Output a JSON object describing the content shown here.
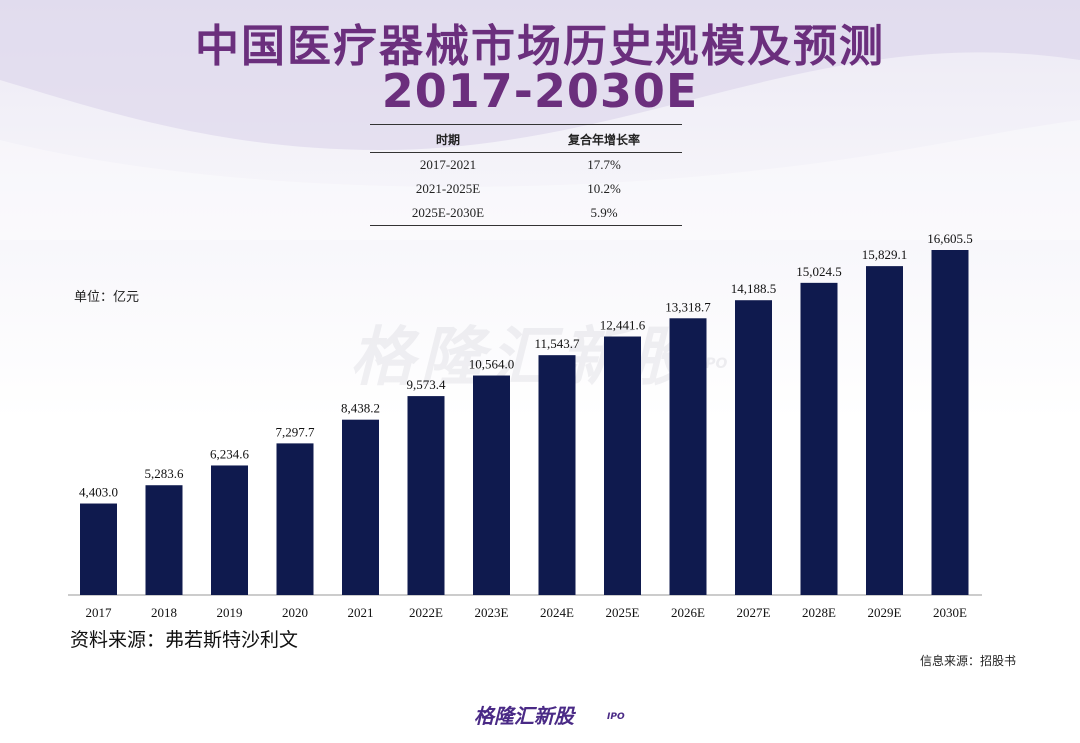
{
  "title_line1": "中国医疗器械市场历史规模及预测",
  "title_line2": "2017-2030E",
  "cagr_table": {
    "header_period": "时期",
    "header_cagr": "复合年增长率",
    "rows": [
      {
        "period": "2017-2021",
        "cagr": "17.7%"
      },
      {
        "period": "2021-2025E",
        "cagr": "10.2%"
      },
      {
        "period": "2025E-2030E",
        "cagr": "5.9%"
      }
    ]
  },
  "unit": "单位：亿元",
  "watermark": "格隆汇新股",
  "watermark_sub": "IPO",
  "source": "资料来源：弗若斯特沙利文",
  "info_source": "信息来源：招股书",
  "logo_text": "格隆汇新股",
  "logo_sub": "IPO",
  "colors": {
    "bar": "#0f1a4e",
    "title": "#6b2f7d",
    "logo": "#4a2a86"
  },
  "chart_data": {
    "type": "bar",
    "categories": [
      "2017",
      "2018",
      "2019",
      "2020",
      "2021",
      "2022E",
      "2023E",
      "2024E",
      "2025E",
      "2026E",
      "2027E",
      "2028E",
      "2029E",
      "2030E"
    ],
    "values": [
      4403.0,
      5283.6,
      6234.6,
      7297.7,
      8438.2,
      9573.4,
      10564.0,
      11543.7,
      12441.6,
      13318.7,
      14188.5,
      15024.5,
      15829.1,
      16605.5
    ],
    "value_labels": [
      "4,403.0",
      "5,283.6",
      "6,234.6",
      "7,297.7",
      "8,438.2",
      "9,573.4",
      "10,564.0",
      "11,543.7",
      "12,441.6",
      "13,318.7",
      "14,188.5",
      "15,024.5",
      "15,829.1",
      "16,605.5"
    ],
    "ylim": [
      0,
      16605.5
    ],
    "grid": false,
    "legend": "none"
  }
}
